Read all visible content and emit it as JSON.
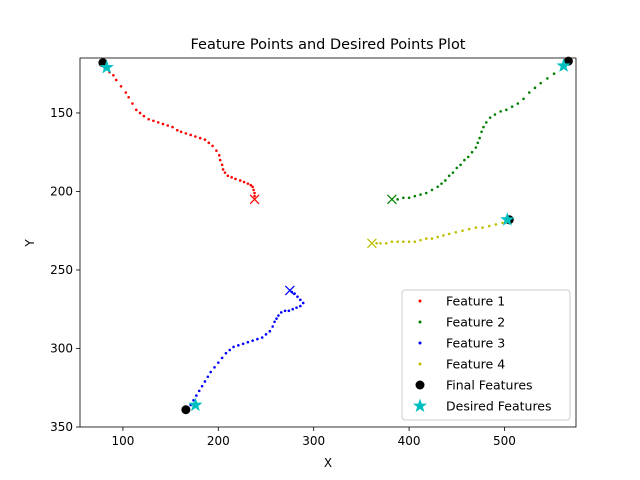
{
  "chart_data": {
    "type": "scatter",
    "title": "Feature Points and Desired Points Plot",
    "xlabel": "X",
    "ylabel": "Y",
    "xlim": [
      55,
      575
    ],
    "ylim": [
      350,
      115
    ],
    "y_inverted": true,
    "grid": false,
    "xticks": [
      100,
      200,
      300,
      400,
      500
    ],
    "yticks": [
      150,
      200,
      250,
      300,
      350
    ],
    "legend_position": "bottom-right",
    "series": [
      {
        "name": "Feature 1",
        "color": "#ff0000",
        "marker": "dot",
        "points": [
          [
            81,
            122
          ],
          [
            86,
            124
          ],
          [
            90,
            126
          ],
          [
            93,
            129
          ],
          [
            98,
            133
          ],
          [
            103,
            137
          ],
          [
            106,
            140
          ],
          [
            110,
            144
          ],
          [
            114,
            148
          ],
          [
            118,
            150
          ],
          [
            122,
            152
          ],
          [
            127,
            154
          ],
          [
            132,
            155
          ],
          [
            137,
            156
          ],
          [
            142,
            157
          ],
          [
            147,
            158
          ],
          [
            152,
            159
          ],
          [
            157,
            161
          ],
          [
            161,
            162
          ],
          [
            166,
            163
          ],
          [
            171,
            164
          ],
          [
            176,
            165
          ],
          [
            181,
            166
          ],
          [
            186,
            167
          ],
          [
            190,
            169
          ],
          [
            194,
            171
          ],
          [
            198,
            174
          ],
          [
            201,
            177
          ],
          [
            202,
            180
          ],
          [
            204,
            183
          ],
          [
            205,
            186
          ],
          [
            207,
            188
          ],
          [
            210,
            190
          ],
          [
            214,
            191
          ],
          [
            218,
            192
          ],
          [
            223,
            193
          ],
          [
            227,
            194
          ],
          [
            231,
            195
          ],
          [
            234,
            196
          ],
          [
            236,
            197
          ],
          [
            237,
            199
          ],
          [
            238,
            201
          ],
          [
            238,
            203
          ]
        ],
        "end_marker": [
          238,
          205
        ]
      },
      {
        "name": "Feature 2",
        "color": "#008000",
        "marker": "dot",
        "points": [
          [
            567,
            118
          ],
          [
            560,
            122
          ],
          [
            552,
            125
          ],
          [
            545,
            128
          ],
          [
            538,
            131
          ],
          [
            532,
            134
          ],
          [
            526,
            137
          ],
          [
            520,
            141
          ],
          [
            514,
            144
          ],
          [
            508,
            146
          ],
          [
            502,
            148
          ],
          [
            496,
            149
          ],
          [
            490,
            151
          ],
          [
            485,
            153
          ],
          [
            481,
            156
          ],
          [
            478,
            159
          ],
          [
            476,
            162
          ],
          [
            474,
            166
          ],
          [
            472,
            169
          ],
          [
            470,
            172
          ],
          [
            466,
            175
          ],
          [
            462,
            178
          ],
          [
            458,
            180
          ],
          [
            454,
            183
          ],
          [
            450,
            185
          ],
          [
            446,
            188
          ],
          [
            442,
            190
          ],
          [
            438,
            193
          ],
          [
            434,
            195
          ],
          [
            430,
            197
          ],
          [
            424,
            199
          ],
          [
            418,
            201
          ],
          [
            412,
            202
          ],
          [
            406,
            203
          ],
          [
            400,
            204
          ],
          [
            394,
            204
          ],
          [
            388,
            205
          ]
        ],
        "end_marker": [
          382,
          205
        ]
      },
      {
        "name": "Feature 3",
        "color": "#0000ff",
        "marker": "dot",
        "points": [
          [
            167,
            339
          ],
          [
            171,
            336
          ],
          [
            174,
            333
          ],
          [
            177,
            330
          ],
          [
            180,
            327
          ],
          [
            183,
            324
          ],
          [
            186,
            321
          ],
          [
            189,
            318
          ],
          [
            192,
            315
          ],
          [
            196,
            312
          ],
          [
            200,
            309
          ],
          [
            204,
            306
          ],
          [
            208,
            303
          ],
          [
            212,
            301
          ],
          [
            216,
            299
          ],
          [
            221,
            298
          ],
          [
            226,
            297
          ],
          [
            231,
            296
          ],
          [
            236,
            295
          ],
          [
            241,
            294
          ],
          [
            246,
            293
          ],
          [
            250,
            291
          ],
          [
            254,
            289
          ],
          [
            257,
            286
          ],
          [
            259,
            283
          ],
          [
            261,
            281
          ],
          [
            263,
            279
          ],
          [
            266,
            277
          ],
          [
            270,
            276
          ],
          [
            274,
            276
          ],
          [
            278,
            275
          ],
          [
            282,
            274
          ],
          [
            286,
            273
          ],
          [
            289,
            271
          ],
          [
            286,
            269
          ],
          [
            283,
            267
          ],
          [
            280,
            265
          ],
          [
            277,
            264
          ]
        ],
        "end_marker": [
          275,
          263
        ]
      },
      {
        "name": "Feature 4",
        "color": "#bfbf00",
        "marker": "dot",
        "points": [
          [
            505,
            219
          ],
          [
            498,
            220
          ],
          [
            491,
            221
          ],
          [
            484,
            222
          ],
          [
            477,
            223
          ],
          [
            470,
            223
          ],
          [
            463,
            224
          ],
          [
            456,
            225
          ],
          [
            449,
            226
          ],
          [
            442,
            227
          ],
          [
            436,
            228
          ],
          [
            430,
            229
          ],
          [
            424,
            230
          ],
          [
            418,
            230
          ],
          [
            412,
            231
          ],
          [
            406,
            232
          ],
          [
            400,
            232
          ],
          [
            394,
            232
          ],
          [
            388,
            232
          ],
          [
            382,
            232
          ],
          [
            376,
            233
          ],
          [
            370,
            233
          ],
          [
            366,
            233
          ]
        ],
        "end_marker": [
          361,
          233
        ]
      }
    ],
    "final_features": {
      "name": "Final Features",
      "color": "#000000",
      "points": [
        [
          79,
          118
        ],
        [
          567,
          117
        ],
        [
          505,
          218
        ],
        [
          166,
          339
        ]
      ]
    },
    "desired_features": {
      "name": "Desired Features",
      "color": "#00bfbf",
      "points": [
        [
          83,
          121
        ],
        [
          562,
          120
        ],
        [
          503,
          218
        ],
        [
          176,
          336
        ]
      ]
    }
  }
}
